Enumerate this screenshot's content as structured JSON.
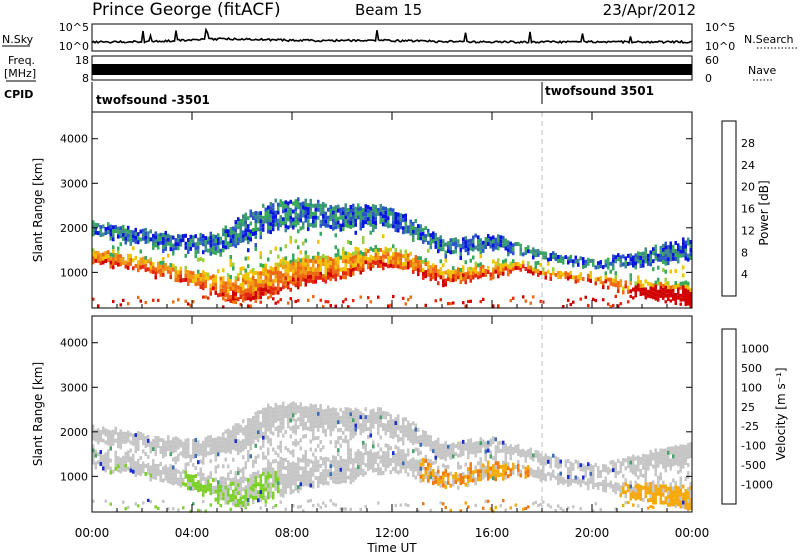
{
  "header": {
    "station": "Prince George (fitACF)",
    "beam": "Beam 15",
    "date": "23/Apr/2012"
  },
  "top_panels": {
    "nsky_label": "N.Sky",
    "nsearch_label": "N.Search",
    "nsky_ticks": [
      "10^5",
      "10^0"
    ],
    "nsearch_ticks": [
      "10^5",
      "10^0"
    ],
    "freq_label_1": "Freq.",
    "freq_label_2": "[MHz]",
    "freq_ticks": [
      "18",
      "8"
    ],
    "nave_label": "Nave",
    "nave_ticks": [
      "60",
      "0"
    ],
    "cpid_label": "CPID",
    "cpid_entries": [
      {
        "label": "twofsound -3501",
        "start_hour": 0
      },
      {
        "label": "twofsound 3501",
        "start_hour": 18
      }
    ]
  },
  "chart_data": [
    {
      "type": "heatmap",
      "name": "power",
      "ylabel": "Slant Range [km]",
      "yticks": [
        1000,
        2000,
        3000,
        4000
      ],
      "ylim": [
        200,
        4600
      ],
      "xlim": [
        0,
        24
      ],
      "colorbar_label": "Power [dB]",
      "colorbar_ticks": [
        4,
        8,
        12,
        16,
        20,
        24,
        28
      ],
      "colorbar_colors": [
        "#0a14e0",
        "#2a56c8",
        "#3d8a8a",
        "#37a85e",
        "#9ecf3a",
        "#f2c300",
        "#f09a18",
        "#ee6a10",
        "#e22a10",
        "#d10000"
      ]
    },
    {
      "type": "heatmap",
      "name": "velocity",
      "ylabel": "Slant Range [km]",
      "yticks": [
        1000,
        2000,
        3000,
        4000
      ],
      "ylim": [
        200,
        4600
      ],
      "xlim": [
        0,
        24
      ],
      "xticks": [
        "00:00",
        "04:00",
        "08:00",
        "12:00",
        "16:00",
        "20:00",
        "00:00"
      ],
      "xlabel": "Time UT",
      "colorbar_label": "Velocity [m s⁻¹]",
      "colorbar_ticks": [
        1000,
        500,
        100,
        25,
        -25,
        -100,
        -500,
        -1000
      ],
      "colorbar_colors": [
        "#1a2ecb",
        "#3d6fb0",
        "#4aa06a",
        "#7ed12a",
        "#c6c6c6",
        "#c6c6c6",
        "#f5a90c",
        "#f07a10",
        "#e84a10",
        "#e00000"
      ]
    }
  ],
  "time_axis": {
    "ticks": [
      "00:00",
      "04:00",
      "08:00",
      "12:00",
      "16:00",
      "20:00",
      "00:00"
    ],
    "label": "Time UT"
  }
}
